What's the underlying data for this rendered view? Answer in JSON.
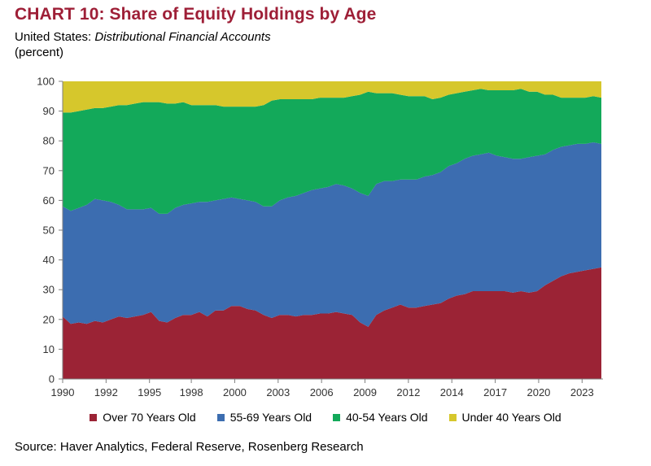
{
  "header": {
    "title": "CHART 10: Share of Equity Holdings by Age",
    "subtitle_prefix": "United States: ",
    "subtitle_italic": "Distributional Financial Accounts",
    "unit": "(percent)"
  },
  "source": "Source: Haver Analytics, Federal Reserve, Rosenberg Research",
  "colors": {
    "over70": "#9b2335",
    "age55_69": "#3c6db0",
    "age40_54": "#13a95a",
    "under40": "#d6c72c",
    "axis": "#7f7f7f"
  },
  "chart_data": {
    "type": "area",
    "stacked": true,
    "title": "CHART 10: Share of Equity Holdings by Age",
    "xlabel": "",
    "ylabel": "(percent)",
    "ylim": [
      0,
      100
    ],
    "xlim": [
      1990,
      2023.6
    ],
    "yticks": [
      0,
      10,
      20,
      30,
      40,
      50,
      60,
      70,
      80,
      90,
      100
    ],
    "xtick_labels": [
      "1990",
      "1992",
      "1995",
      "1998",
      "2000",
      "2003",
      "2006",
      "2009",
      "2012",
      "2014",
      "2017",
      "2020",
      "2023"
    ],
    "xtick_values": [
      1990,
      1992.7,
      1995.4,
      1998.0,
      2000.7,
      2003.4,
      2006.1,
      2008.8,
      2011.5,
      2014.2,
      2016.9,
      2019.6,
      2022.3
    ],
    "legend_position": "bottom",
    "x": [
      1990,
      1990.5,
      1991,
      1991.5,
      1992,
      1992.5,
      1993,
      1993.5,
      1994,
      1994.5,
      1995,
      1995.5,
      1996,
      1996.5,
      1997,
      1997.5,
      1998,
      1998.5,
      1999,
      1999.5,
      2000,
      2000.5,
      2001,
      2001.5,
      2002,
      2002.5,
      2003,
      2003.5,
      2004,
      2004.5,
      2005,
      2005.5,
      2006,
      2006.5,
      2007,
      2007.5,
      2008,
      2008.5,
      2009,
      2009.5,
      2010,
      2010.5,
      2011,
      2011.5,
      2012,
      2012.5,
      2013,
      2013.5,
      2014,
      2014.5,
      2015,
      2015.5,
      2016,
      2016.5,
      2017,
      2017.5,
      2018,
      2018.5,
      2019,
      2019.5,
      2020,
      2020.5,
      2021,
      2021.5,
      2022,
      2022.5,
      2023,
      2023.5
    ],
    "series": [
      {
        "name": "Over 70 Years Old",
        "values": [
          21,
          18.5,
          19,
          18.5,
          19.5,
          19,
          20,
          21,
          20.5,
          21,
          21.5,
          22.5,
          19.5,
          19,
          20.5,
          21.5,
          21.5,
          22.5,
          21,
          23,
          23,
          24.5,
          24.5,
          23.5,
          23,
          21.5,
          20.5,
          21.5,
          21.5,
          21,
          21.5,
          21.5,
          22,
          22,
          22.5,
          22,
          21.5,
          19,
          17.5,
          21.5,
          23,
          24,
          25,
          24,
          24,
          24.5,
          25,
          25.5,
          27,
          28,
          28.5,
          29.5,
          29.5,
          29.5,
          29.5,
          29.5,
          29,
          29.5,
          29,
          29.5,
          31.5,
          33,
          34.5,
          35.5,
          36,
          36.5,
          37,
          37.5
        ]
      },
      {
        "name": "55-69 Years Old",
        "values": [
          37,
          38,
          38.5,
          40,
          41,
          41,
          39.5,
          37.5,
          36.5,
          36,
          35.5,
          35,
          36,
          36.5,
          37,
          37,
          37.5,
          37,
          38.5,
          37,
          37.5,
          36.5,
          36,
          36.5,
          36.5,
          36.5,
          37.5,
          38.5,
          39.5,
          40.5,
          41,
          42,
          42,
          42.5,
          43,
          43,
          42.5,
          43.5,
          44,
          44,
          43.5,
          42.5,
          42,
          43,
          43,
          43.5,
          43.5,
          44,
          44.5,
          44.5,
          45.5,
          45.5,
          46,
          46.5,
          45.5,
          45,
          45,
          44.5,
          45.5,
          45.5,
          44,
          44,
          43.5,
          43,
          43,
          42.5,
          42.5,
          41.5
        ]
      },
      {
        "name": "40-54 Years Old",
        "values": [
          31.5,
          33,
          32.5,
          32,
          30.5,
          31,
          32,
          33.5,
          35,
          35.5,
          36,
          35.5,
          37.5,
          37,
          35,
          34.5,
          33,
          32.5,
          32.5,
          32,
          31,
          30.5,
          31,
          31.5,
          32,
          34,
          35.5,
          34,
          33,
          32.5,
          31.5,
          30.5,
          30.5,
          30,
          29,
          29.5,
          31,
          33,
          35,
          30.5,
          29.5,
          29.5,
          28.5,
          28,
          28,
          27,
          25.5,
          25,
          24,
          23.5,
          22.5,
          22,
          22,
          21,
          22,
          22.5,
          23,
          23.5,
          22,
          21.5,
          20,
          18.5,
          16.5,
          16,
          15.5,
          15.5,
          15.5,
          15.5
        ]
      },
      {
        "name": "Under 40 Years Old",
        "values": [
          10.5,
          10.5,
          10,
          9.5,
          9,
          9,
          8.5,
          8,
          8,
          7.5,
          7,
          7,
          7,
          7.5,
          7.5,
          7,
          8,
          8,
          8,
          8,
          8.5,
          8.5,
          8.5,
          8.5,
          8.5,
          8,
          6.5,
          6,
          6,
          6,
          6,
          6,
          5.5,
          5.5,
          5.5,
          5.5,
          5,
          4.5,
          3.5,
          4,
          4,
          4,
          4.5,
          5,
          5,
          5,
          6,
          5.5,
          4.5,
          4,
          3.5,
          3,
          2.5,
          3,
          3,
          3,
          3,
          2.5,
          3.5,
          3.5,
          4.5,
          4.5,
          5.5,
          5.5,
          5.5,
          5.5,
          5,
          5.5
        ]
      }
    ]
  }
}
